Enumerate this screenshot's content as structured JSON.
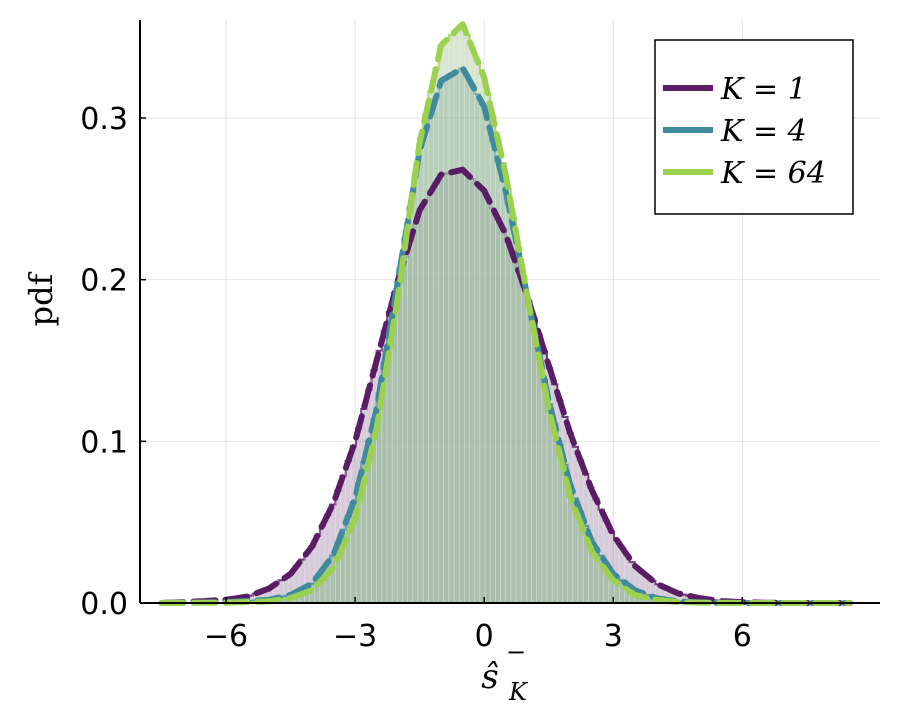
{
  "chart_data": {
    "type": "line",
    "xlabel": "ŝ",
    "xlabel_sup": "−",
    "xlabel_sub": "K",
    "ylabel": "pdf",
    "xlim": [
      -8,
      9.2
    ],
    "ylim": [
      0,
      0.36
    ],
    "xticks": [
      -6,
      -3,
      0,
      3,
      6
    ],
    "xtick_labels": [
      "−6",
      "−3",
      "0",
      "3",
      "6"
    ],
    "yticks": [
      0,
      0.1,
      0.2,
      0.3
    ],
    "ytick_labels": [
      "0.0",
      "0.1",
      "0.2",
      "0.3"
    ],
    "grid": true,
    "legend_position": "top-right",
    "series": [
      {
        "name": "K = 1",
        "legend_label": "K = 1",
        "color": "#5b1c66",
        "fill": "#8a6a8e",
        "x": [
          -7.5,
          -7,
          -6.5,
          -6,
          -5.5,
          -5,
          -4.5,
          -4,
          -3.5,
          -3,
          -2.5,
          -2,
          -1.5,
          -1,
          -0.5,
          0,
          0.5,
          1,
          1.5,
          2,
          2.5,
          3,
          3.5,
          4,
          4.5,
          5,
          5.5,
          6,
          6.5,
          7,
          7.5,
          8.5
        ],
        "y": [
          0.0,
          0.0005,
          0.0012,
          0.002,
          0.004,
          0.009,
          0.018,
          0.035,
          0.062,
          0.1,
          0.15,
          0.2,
          0.243,
          0.265,
          0.268,
          0.255,
          0.228,
          0.19,
          0.147,
          0.105,
          0.07,
          0.042,
          0.023,
          0.012,
          0.006,
          0.003,
          0.0012,
          0.0005,
          0.0002,
          0.0,
          0.0,
          0.0
        ]
      },
      {
        "name": "K = 4",
        "legend_label": "K = 4",
        "color": "#3f8a9d",
        "fill": "#7fa4a8",
        "x": [
          -7.5,
          -6,
          -5,
          -4.5,
          -4,
          -3.5,
          -3,
          -2.5,
          -2,
          -1.5,
          -1,
          -0.5,
          0,
          0.5,
          1,
          1.5,
          2,
          2.5,
          3,
          3.5,
          4,
          4.5,
          5,
          6,
          7,
          8.5
        ],
        "y": [
          0.0,
          0.0005,
          0.002,
          0.005,
          0.012,
          0.03,
          0.065,
          0.12,
          0.2,
          0.28,
          0.323,
          0.331,
          0.307,
          0.255,
          0.19,
          0.125,
          0.073,
          0.038,
          0.018,
          0.008,
          0.003,
          0.001,
          0.0004,
          0.0,
          0.0,
          0.0
        ]
      },
      {
        "name": "K = 64",
        "legend_label": "K = 64",
        "color": "#9bd14f",
        "fill": "#a9c79a",
        "x": [
          -7.5,
          -6,
          -5,
          -4.5,
          -4,
          -3.5,
          -3,
          -2.5,
          -2,
          -1.5,
          -1,
          -0.5,
          0,
          0.5,
          1,
          1.5,
          2,
          2.5,
          3,
          3.5,
          4,
          4.5,
          5,
          6,
          7,
          8.5
        ],
        "y": [
          0.0,
          0.0002,
          0.001,
          0.003,
          0.008,
          0.022,
          0.052,
          0.108,
          0.19,
          0.285,
          0.345,
          0.358,
          0.325,
          0.265,
          0.19,
          0.12,
          0.066,
          0.032,
          0.014,
          0.005,
          0.002,
          0.0006,
          0.0002,
          0.0,
          0.0,
          0.0
        ]
      }
    ]
  }
}
